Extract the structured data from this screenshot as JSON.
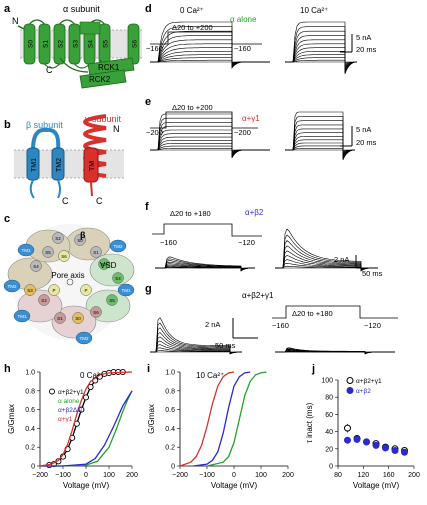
{
  "panel_letters": [
    "a",
    "b",
    "c",
    "d",
    "e",
    "f",
    "g",
    "h",
    "i",
    "j"
  ],
  "panel_a": {
    "alpha_subunit": "α subunit",
    "n_term": "N",
    "c_term": "C",
    "segments": [
      "S0",
      "S1",
      "S2",
      "S3",
      "S4",
      "S5",
      "S6"
    ],
    "domains": [
      "RCK1",
      "RCK2"
    ],
    "colors": {
      "membrane_protein": "#3aa13a",
      "rck": "#3aa13a",
      "outline": "#1a6a1a"
    }
  },
  "panel_b": {
    "beta_subunit": "β subunit",
    "gamma_subunit": "γ subunit",
    "n_term": "N",
    "c_term_beta": "C",
    "c_term_gamma": "C",
    "beta_helices": [
      "TM1",
      "TM2"
    ],
    "gamma_helix": "TM",
    "colors": {
      "beta": "#2e86c1",
      "gamma": "#d9302c"
    }
  },
  "panel_c": {
    "beta_label": "β",
    "center_label": "Pore axis",
    "vsd_label": "VSD",
    "labels": [
      "S0",
      "S1",
      "S2",
      "S3",
      "S4",
      "S5",
      "S6",
      "TM1",
      "TM2",
      "P"
    ]
  },
  "panel_d": {
    "condition_left": "0 Ca²⁺",
    "condition_right": "10 Ca²⁺",
    "construct": "α alone",
    "protocol": "Δ20 to +200",
    "hold_pre": "−160",
    "hold_post": "−160",
    "scale_current": "5 nA",
    "scale_time": "20 ms",
    "colors": {
      "construct": "#22a32a"
    }
  },
  "panel_e": {
    "construct": "α+γ1",
    "protocol": "Δ20 to +200",
    "hold_pre": "−200",
    "hold_post": "−200",
    "scale_current": "5 nA",
    "scale_time": "20 ms",
    "colors": {
      "construct": "#d9302c"
    }
  },
  "panel_f": {
    "construct": "α+β2",
    "protocol": "Δ20 to +180",
    "hold_pre": "−160",
    "hold_post": "−120",
    "scale_current": "2 nA",
    "scale_time": "50 ms",
    "colors": {
      "construct": "#2a2ad0"
    }
  },
  "panel_g": {
    "construct": "α+β2+γ1",
    "protocol": "Δ20 to +180",
    "hold_pre": "−160",
    "hold_post": "−120",
    "scale_current": "2 nA",
    "scale_time": "50 ms"
  },
  "panel_h": {
    "condition": "0 Ca²⁺",
    "legend": [
      {
        "name": "α+β2+γ1",
        "color": "#000000"
      },
      {
        "name": "α alone",
        "color": "#22a32a"
      },
      {
        "name": "α+β2ΔN",
        "color": "#2a2ad0"
      },
      {
        "name": "α+γ1",
        "color": "#d9302c"
      }
    ]
  },
  "panel_i": {
    "condition": "10 Ca²⁺"
  },
  "panel_j": {
    "legend": [
      {
        "name": "α+β2+γ1",
        "color": "#000000"
      },
      {
        "name": "α+β2",
        "color": "#2a2ad0"
      }
    ]
  },
  "chart_data": [
    {
      "panel": "h",
      "type": "line",
      "xlabel": "Voltage (mV)",
      "ylabel": "G/Gmax",
      "xlim": [
        -200,
        200
      ],
      "ylim": [
        0,
        1.0
      ],
      "xticks": [
        "−200",
        "−100",
        "0",
        "100",
        "200"
      ],
      "yticks": [
        "0",
        "0.2",
        "0.4",
        "0.6",
        "0.8",
        "1.0"
      ],
      "series": [
        {
          "name": "α+β2+γ1",
          "color": "#000000",
          "markers": true,
          "x": [
            -160,
            -140,
            -120,
            -100,
            -80,
            -60,
            -40,
            -20,
            0,
            20,
            40,
            60,
            80,
            100,
            120,
            140,
            160
          ],
          "y": [
            0.01,
            0.02,
            0.05,
            0.1,
            0.18,
            0.3,
            0.45,
            0.6,
            0.73,
            0.84,
            0.91,
            0.95,
            0.98,
            0.99,
            1.0,
            1.0,
            1.0
          ]
        },
        {
          "name": "α alone",
          "color": "#22a32a",
          "markers": false,
          "x": [
            -200,
            -100,
            0,
            50,
            100,
            130,
            160,
            180,
            200
          ],
          "y": [
            0,
            0,
            0.01,
            0.05,
            0.2,
            0.38,
            0.58,
            0.7,
            0.8
          ]
        },
        {
          "name": "α+β2ΔN",
          "color": "#2a2ad0",
          "markers": false,
          "x": [
            -200,
            -100,
            0,
            40,
            80,
            120,
            160,
            200
          ],
          "y": [
            0,
            0,
            0.02,
            0.08,
            0.22,
            0.42,
            0.64,
            0.8
          ]
        },
        {
          "name": "α+γ1",
          "color": "#d9302c",
          "markers": false,
          "x": [
            -200,
            -150,
            -120,
            -100,
            -80,
            -60,
            -40,
            -20,
            0,
            20,
            60,
            100,
            200
          ],
          "y": [
            0,
            0.02,
            0.06,
            0.12,
            0.23,
            0.38,
            0.55,
            0.7,
            0.82,
            0.9,
            0.97,
            0.99,
            1.0
          ]
        }
      ]
    },
    {
      "panel": "i",
      "type": "line",
      "xlabel": "Voltage (mV)",
      "ylabel": "G/Gmax",
      "xlim": [
        -200,
        200
      ],
      "ylim": [
        0,
        1.0
      ],
      "xticks": [
        "−200",
        "−100",
        "0",
        "100",
        "200"
      ],
      "yticks": [
        "0",
        "0.2",
        "0.4",
        "0.6",
        "0.8",
        "1.0"
      ],
      "series": [
        {
          "name": "α+γ1",
          "color": "#d9302c",
          "x": [
            -200,
            -160,
            -140,
            -120,
            -100,
            -80,
            -60,
            -40,
            -20,
            0
          ],
          "y": [
            0,
            0.04,
            0.1,
            0.22,
            0.42,
            0.66,
            0.85,
            0.95,
            0.99,
            1.0
          ]
        },
        {
          "name": "α+β2",
          "color": "#2a2ad0",
          "x": [
            -150,
            -100,
            -80,
            -60,
            -40,
            -20,
            0,
            20,
            40,
            60
          ],
          "y": [
            0,
            0.02,
            0.06,
            0.15,
            0.35,
            0.62,
            0.85,
            0.95,
            0.99,
            1.0
          ]
        },
        {
          "name": "α alone",
          "color": "#22a32a",
          "x": [
            -100,
            -40,
            -20,
            0,
            20,
            40,
            60,
            80,
            100,
            120
          ],
          "y": [
            0,
            0.04,
            0.1,
            0.25,
            0.5,
            0.75,
            0.9,
            0.97,
            0.99,
            1.0
          ]
        }
      ]
    },
    {
      "panel": "j",
      "type": "scatter",
      "xlabel": "Voltage (mV)",
      "ylabel": "τ inact (ms)",
      "xlim": [
        40,
        200
      ],
      "ylim": [
        0,
        100
      ],
      "xticks": [
        "80",
        "120",
        "160",
        "200"
      ],
      "yticks": [
        "0",
        "20",
        "40",
        "60",
        "80",
        "100"
      ],
      "series": [
        {
          "name": "α+β2+γ1",
          "color": "#000000",
          "filled": false,
          "x": [
            60,
            80,
            100,
            120,
            140,
            160,
            180
          ],
          "y": [
            44,
            32,
            28,
            26,
            22,
            20,
            18
          ],
          "err": [
            5,
            4,
            3,
            3,
            3,
            2,
            2
          ]
        },
        {
          "name": "α+β2",
          "color": "#2a2ad0",
          "filled": true,
          "x": [
            60,
            80,
            100,
            120,
            140,
            160,
            180
          ],
          "y": [
            30,
            31,
            28,
            24,
            21,
            18,
            16
          ],
          "err": [
            3,
            4,
            3,
            3,
            2,
            2,
            2
          ]
        }
      ]
    }
  ]
}
